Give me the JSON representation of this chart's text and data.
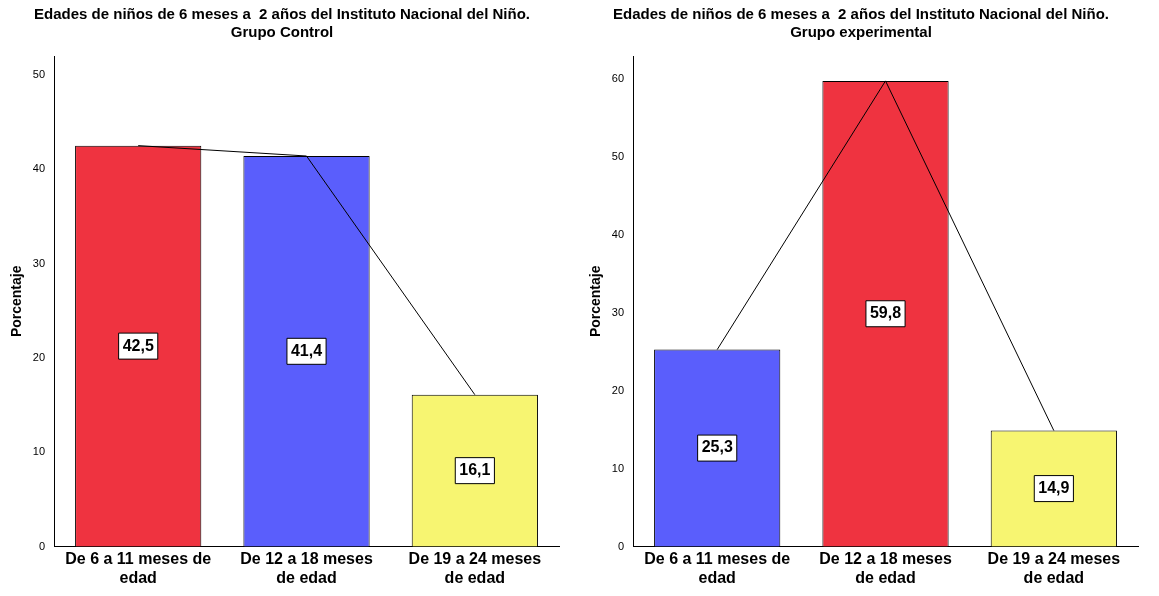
{
  "chart_data": [
    {
      "type": "bar",
      "title": "Edades de niños de 6 meses a  2 años del Instituto Nacional del Niño. Grupo Control",
      "ylabel": "Porcentaje",
      "categories": [
        "De 6 a 11 meses de edad",
        "De 12 a 18 meses de edad",
        "De 19 a 24 meses de edad"
      ],
      "ylim": [
        0,
        52
      ],
      "yticks": [
        0,
        10,
        20,
        30,
        40,
        50
      ],
      "grid": false,
      "legend": false,
      "series": [
        {
          "colors": [
            "#ef3340",
            "#5a5efc",
            "#f7f571"
          ],
          "values": [
            42.5,
            41.4,
            16.1
          ],
          "value_labels": [
            "42,5",
            "41,4",
            "16,1"
          ]
        },
        {
          "type": "line",
          "color": "#000000",
          "marker": "none",
          "values": [
            42.5,
            41.4,
            16.1
          ]
        }
      ]
    },
    {
      "type": "bar",
      "title": "Edades de niños de 6 meses a  2 años del Instituto Nacional del Niño. Grupo experimental",
      "ylabel": "Porcentaje",
      "categories": [
        "De 6 a 11 meses de edad",
        "De 12 a 18 meses de edad",
        "De 19 a 24 meses de edad"
      ],
      "ylim": [
        0,
        63
      ],
      "yticks": [
        0,
        10,
        20,
        30,
        40,
        50,
        60
      ],
      "grid": false,
      "legend": false,
      "series": [
        {
          "colors": [
            "#5a5efc",
            "#ef3340",
            "#f7f571"
          ],
          "values": [
            25.3,
            59.8,
            14.9
          ],
          "value_labels": [
            "25,3",
            "59,8",
            "14,9"
          ]
        },
        {
          "type": "line",
          "color": "#000000",
          "marker": "none",
          "values": [
            25.3,
            59.8,
            14.9
          ]
        }
      ]
    }
  ]
}
